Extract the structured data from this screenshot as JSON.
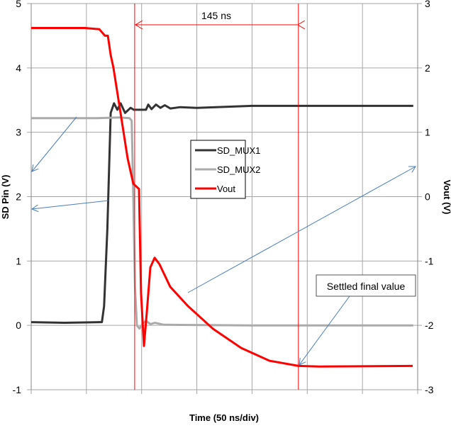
{
  "chart_data": {
    "type": "line",
    "title": "",
    "xlabel": "Time (50 ns/div)",
    "ylabel": "SD Pin (V)",
    "y2label": "Vout (V)",
    "xlim": [
      0,
      350
    ],
    "ylim": [
      -1,
      5
    ],
    "y2lim": [
      -3,
      3
    ],
    "yticks": [
      "-1",
      "0",
      "1",
      "2",
      "3",
      "4",
      "5"
    ],
    "y2ticks": [
      "-3",
      "-2",
      "-1",
      "0",
      "1",
      "2",
      "3"
    ],
    "grid": true,
    "legend_placement": "center",
    "series": [
      {
        "name": "SD_MUX1",
        "axis": "left",
        "color": "#333333",
        "x": [
          0,
          30,
          62,
          64,
          66,
          69,
          72,
          75,
          78,
          81,
          85,
          90,
          93,
          100,
          104,
          106,
          109,
          113,
          117,
          121,
          126,
          135,
          150,
          200,
          346
        ],
        "y": [
          0.05,
          0.04,
          0.05,
          0.05,
          0.3,
          1.5,
          3.3,
          3.45,
          3.35,
          3.45,
          3.3,
          3.38,
          3.35,
          3.35,
          3.35,
          3.43,
          3.36,
          3.43,
          3.38,
          3.42,
          3.37,
          3.39,
          3.38,
          3.41,
          3.41
        ]
      },
      {
        "name": "SD_MUX2",
        "axis": "left",
        "color": "#aaaaaa",
        "x": [
          0,
          60,
          80,
          89,
          91,
          92.5,
          94,
          95.7,
          98,
          101,
          104,
          108,
          112,
          120,
          200,
          346
        ],
        "y": [
          3.22,
          3.22,
          3.23,
          3.22,
          3.18,
          2.0,
          0.6,
          0.0,
          -0.05,
          0.03,
          0.07,
          0.02,
          0.04,
          0.01,
          0.0,
          0.0
        ]
      },
      {
        "name": "Vout",
        "axis": "right",
        "color": "#ff0000",
        "x": [
          0,
          48.8,
          61.7,
          66.8,
          69.4,
          72,
          74.5,
          80.9,
          87.3,
          92.5,
          97.6,
          99.5,
          102.1,
          104.7,
          107.9,
          111.8,
          116.2,
          125.9,
          141.9,
          164.4,
          190.1,
          215.8,
          242.1,
          260.8,
          345.5
        ],
        "y": [
          2.62,
          2.62,
          2.6,
          2.5,
          2.5,
          2.2,
          2.0,
          1.3,
          0.6,
          0.2,
          0.12,
          -1.5,
          -2.32,
          -1.8,
          -1.1,
          -0.95,
          -1.05,
          -1.4,
          -1.7,
          -2.05,
          -2.35,
          -2.55,
          -2.63,
          -2.64,
          -2.63
        ]
      }
    ],
    "markers_ns": [
      93.7,
      242
    ],
    "annotations": {
      "interval_label": "145 ns",
      "settled_label": "Settled final value"
    }
  }
}
